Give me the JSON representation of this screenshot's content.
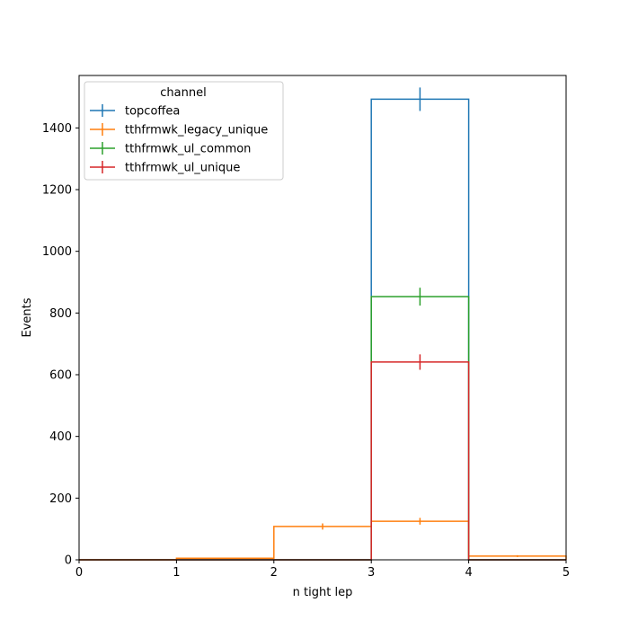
{
  "chart_data": {
    "type": "line",
    "subtype": "step-histogram-with-errorbars",
    "title": "",
    "xlabel": "n tight lep",
    "ylabel": "Events",
    "xlim": [
      0,
      5
    ],
    "ylim": [
      0,
      1570
    ],
    "xticks": [
      0,
      1,
      2,
      3,
      4,
      5
    ],
    "yticks": [
      0,
      200,
      400,
      600,
      800,
      1000,
      1200,
      1400
    ],
    "bin_edges": [
      0,
      1,
      2,
      3,
      4,
      5
    ],
    "grid": false,
    "legend": {
      "title": "channel",
      "placement": "top-left"
    },
    "series": [
      {
        "name": "topcoffea",
        "color": "#1f77b4",
        "values": [
          0,
          0,
          0,
          1493,
          0
        ],
        "errors": [
          0,
          0,
          0,
          38,
          0
        ]
      },
      {
        "name": "tthfrmwk_legacy_unique",
        "color": "#ff7f0e",
        "values": [
          0,
          5,
          108,
          125,
          12
        ],
        "errors": [
          0,
          2,
          10,
          11,
          3
        ]
      },
      {
        "name": "tthfrmwk_ul_common",
        "color": "#2ca02c",
        "values": [
          0,
          0,
          0,
          853,
          0
        ],
        "errors": [
          0,
          0,
          0,
          29,
          0
        ]
      },
      {
        "name": "tthfrmwk_ul_unique",
        "color": "#d62728",
        "values": [
          0,
          0,
          0,
          641,
          0
        ],
        "errors": [
          0,
          0,
          0,
          25,
          0
        ]
      }
    ]
  }
}
